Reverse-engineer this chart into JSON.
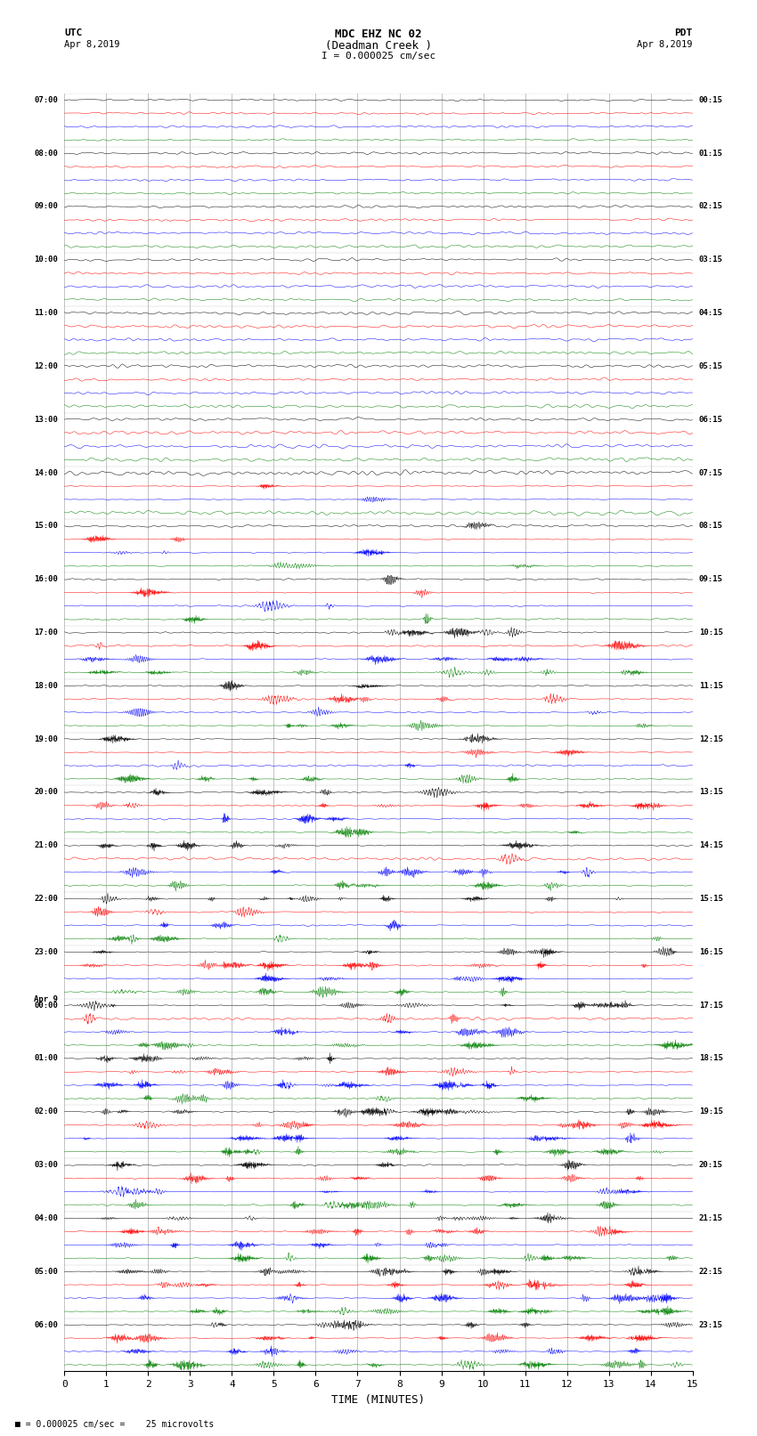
{
  "title_line1": "MDC EHZ NC 02",
  "title_line2": "(Deadman Creek )",
  "title_line3": "I = 0.000025 cm/sec",
  "left_header_line1": "UTC",
  "left_header_line2": "Apr 8,2019",
  "right_header_line1": "PDT",
  "right_header_line2": "Apr 8,2019",
  "xlabel": "TIME (MINUTES)",
  "footnote": "■ = 0.000025 cm/sec =    25 microvolts",
  "x_min": 0,
  "x_max": 15,
  "x_ticks": [
    0,
    1,
    2,
    3,
    4,
    5,
    6,
    7,
    8,
    9,
    10,
    11,
    12,
    13,
    14,
    15
  ],
  "utc_hour_labels": [
    "07:00",
    "08:00",
    "09:00",
    "10:00",
    "11:00",
    "12:00",
    "13:00",
    "14:00",
    "15:00",
    "16:00",
    "17:00",
    "18:00",
    "19:00",
    "20:00",
    "21:00",
    "22:00",
    "23:00",
    "Apr 9\n00:00",
    "01:00",
    "02:00",
    "03:00",
    "04:00",
    "05:00",
    "06:00"
  ],
  "pdt_hour_labels": [
    "00:15",
    "01:15",
    "02:15",
    "03:15",
    "04:15",
    "05:15",
    "06:15",
    "07:15",
    "08:15",
    "09:15",
    "10:15",
    "11:15",
    "12:15",
    "13:15",
    "14:15",
    "15:15",
    "16:15",
    "17:15",
    "18:15",
    "19:15",
    "20:15",
    "21:15",
    "22:15",
    "23:15"
  ],
  "n_hours": 24,
  "traces_per_hour": 4,
  "colors_cycle": [
    "black",
    "red",
    "blue",
    "green"
  ],
  "background_color": "white",
  "grid_color": "#888888",
  "fig_width": 8.5,
  "fig_height": 16.13
}
